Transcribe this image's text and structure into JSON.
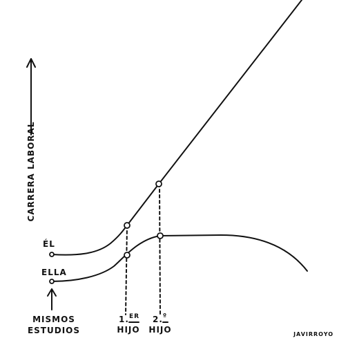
{
  "axis_label": "CARRERA LABORAL",
  "lines": [
    {
      "label": "ÉL"
    },
    {
      "label": "ELLA"
    }
  ],
  "start_label": [
    "MISMOS",
    "ESTUDIOS"
  ],
  "events": [
    {
      "number": "1.",
      "suffix": "ER",
      "label": "HIJO"
    },
    {
      "number": "2.",
      "suffix": "º",
      "label": "HIJO"
    }
  ],
  "signature": "JAVIRROYO"
}
